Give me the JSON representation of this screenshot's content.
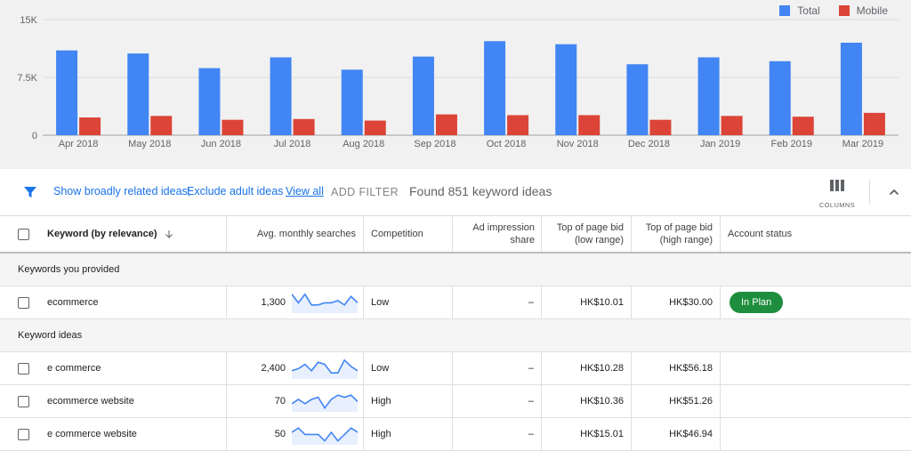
{
  "chart_data": {
    "type": "bar",
    "categories": [
      "Apr 2018",
      "May 2018",
      "Jun 2018",
      "Jul 2018",
      "Aug 2018",
      "Sep 2018",
      "Oct 2018",
      "Nov 2018",
      "Dec 2018",
      "Jan 2019",
      "Feb 2019",
      "Mar 2019"
    ],
    "series": [
      {
        "name": "Total",
        "values": [
          11000,
          10600,
          8700,
          10100,
          8500,
          10200,
          12200,
          11800,
          9200,
          10100,
          9600,
          12000
        ]
      },
      {
        "name": "Mobile",
        "values": [
          2300,
          2500,
          2000,
          2100,
          1900,
          2700,
          2600,
          2600,
          2000,
          2500,
          2400,
          2900
        ]
      }
    ],
    "yticks": [
      "0",
      "7.5K",
      "15K"
    ],
    "ytick_values": [
      0,
      7500,
      15000
    ],
    "ylim": [
      0,
      15000
    ],
    "legend_position": "top-right",
    "colors": {
      "Total": "#4285f4",
      "Mobile": "#db4437"
    }
  },
  "toolbar": {
    "link_broadly": "Show broadly related ideas;",
    "link_adult": "Exclude adult ideas",
    "link_view_all": "View all",
    "add_filter": "ADD FILTER",
    "found": "Found 851 keyword ideas",
    "columns_label": "COLUMNS"
  },
  "table": {
    "headers": {
      "keyword": "Keyword (by relevance)",
      "searches": "Avg. monthly searches",
      "competition": "Competition",
      "impression_line1": "Ad impression",
      "impression_line2": "share",
      "bid_low_line1": "Top of page bid",
      "bid_low_line2": "(low range)",
      "bid_high_line1": "Top of page bid",
      "bid_high_line2": "(high range)",
      "status": "Account status"
    },
    "sections": [
      {
        "label": "Keywords you provided",
        "rows": [
          {
            "keyword": "ecommerce",
            "searches": "1,300",
            "competition": "Low",
            "impression": "–",
            "bid_low": "HK$10.01",
            "bid_high": "HK$30.00",
            "status": "In Plan",
            "trend": [
              8,
              4,
              8,
              3,
              3,
              4,
              4,
              5,
              3,
              7,
              4
            ]
          }
        ]
      },
      {
        "label": "Keyword ideas",
        "rows": [
          {
            "keyword": "e commerce",
            "searches": "2,400",
            "competition": "Low",
            "impression": "–",
            "bid_low": "HK$10.28",
            "bid_high": "HK$56.18",
            "status": "",
            "trend": [
              3,
              4,
              6,
              3,
              7,
              6,
              2,
              2,
              8,
              5,
              3
            ]
          },
          {
            "keyword": "ecommerce website",
            "searches": "70",
            "competition": "High",
            "impression": "–",
            "bid_low": "HK$10.36",
            "bid_high": "HK$51.26",
            "status": "",
            "trend": [
              3,
              5,
              3,
              5,
              6,
              1,
              5,
              7,
              6,
              7,
              4
            ]
          },
          {
            "keyword": "e commerce website",
            "searches": "50",
            "competition": "High",
            "impression": "–",
            "bid_low": "HK$15.01",
            "bid_high": "HK$46.94",
            "status": "",
            "trend": [
              5,
              7,
              4,
              4,
              4,
              1,
              5,
              1,
              4,
              7,
              5
            ]
          }
        ]
      }
    ]
  }
}
